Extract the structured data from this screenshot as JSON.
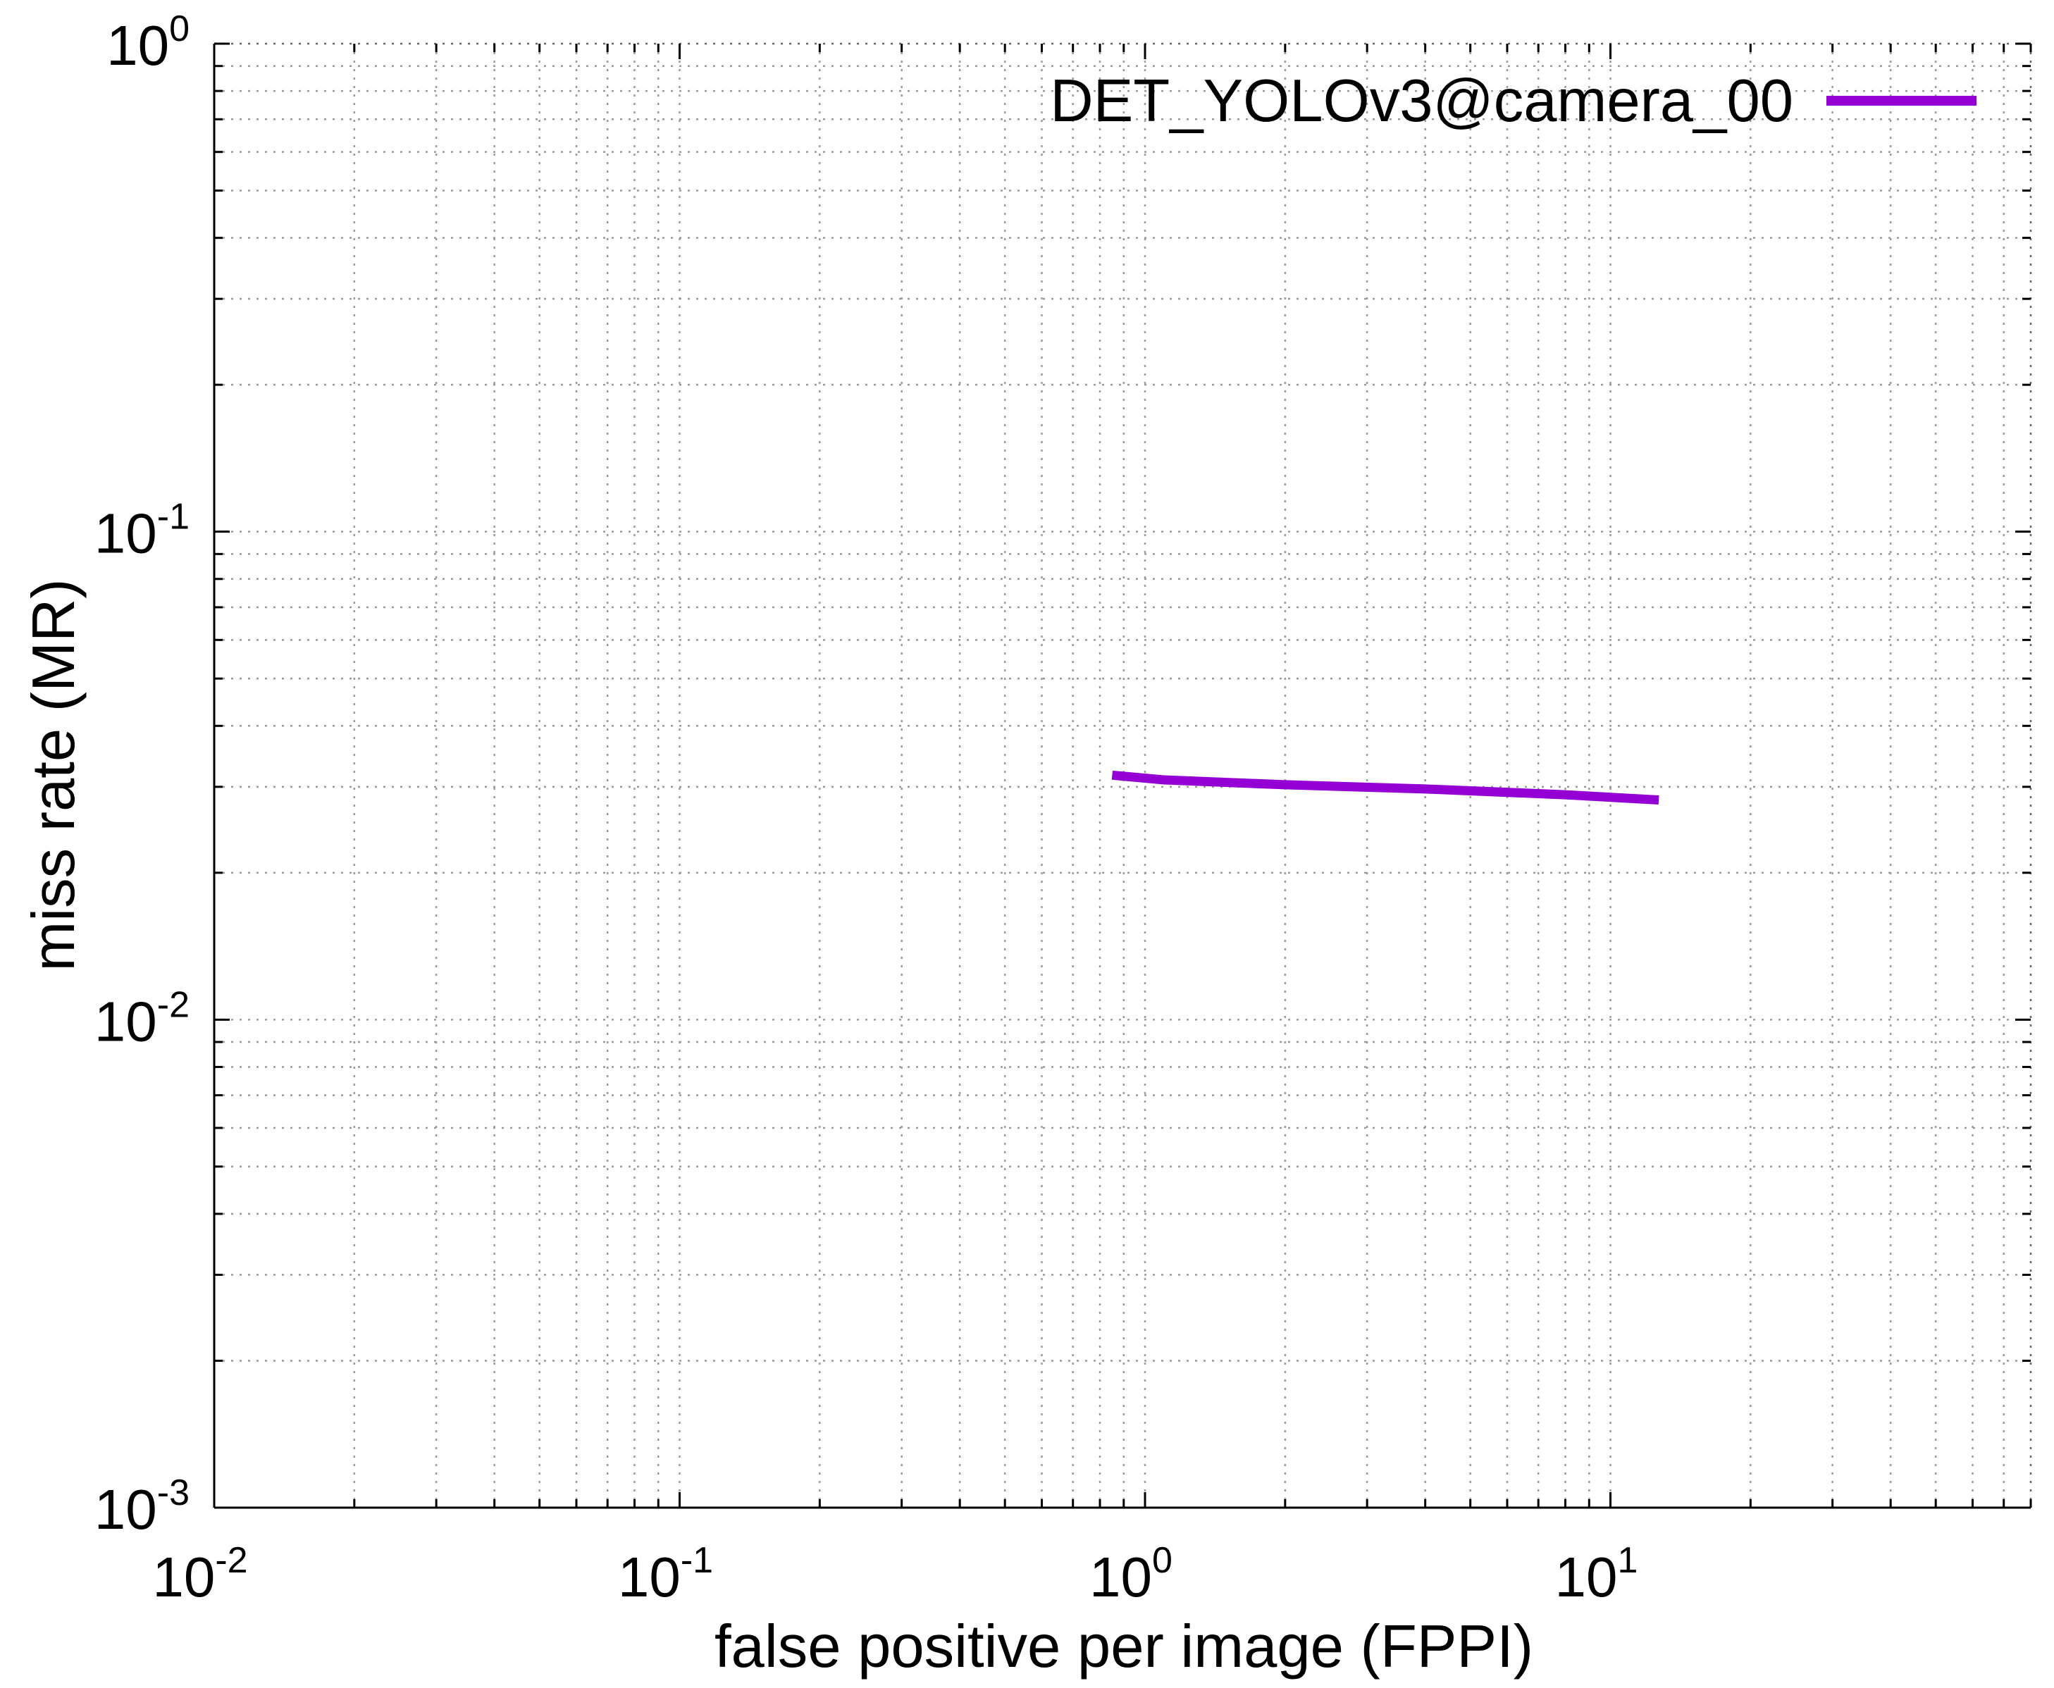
{
  "chart_data": {
    "type": "line",
    "xlabel": "false positive per image (FPPI)",
    "ylabel": "miss rate (MR)",
    "xscale": "log",
    "yscale": "log",
    "xlim": [
      0.01,
      80
    ],
    "ylim": [
      0.001,
      1
    ],
    "grid": true,
    "legend_position": "top-right",
    "x_ticks": [
      {
        "base": "10",
        "exp": "-2",
        "value": 0.01
      },
      {
        "base": "10",
        "exp": "-1",
        "value": 0.1
      },
      {
        "base": "10",
        "exp": "0",
        "value": 1
      },
      {
        "base": "10",
        "exp": "1",
        "value": 10
      }
    ],
    "y_ticks": [
      {
        "base": "10",
        "exp": "-3",
        "value": 0.001
      },
      {
        "base": "10",
        "exp": "-2",
        "value": 0.01
      },
      {
        "base": "10",
        "exp": "-1",
        "value": 0.1
      },
      {
        "base": "10",
        "exp": "0",
        "value": 1
      }
    ],
    "series": [
      {
        "name": "DET_YOLOv3@camera_00",
        "color": "#9400d3",
        "x": [
          0.85,
          1.1,
          2.0,
          4.0,
          8.0,
          12.7
        ],
        "y": [
          0.0317,
          0.031,
          0.0303,
          0.0297,
          0.0289,
          0.0282
        ]
      }
    ]
  }
}
